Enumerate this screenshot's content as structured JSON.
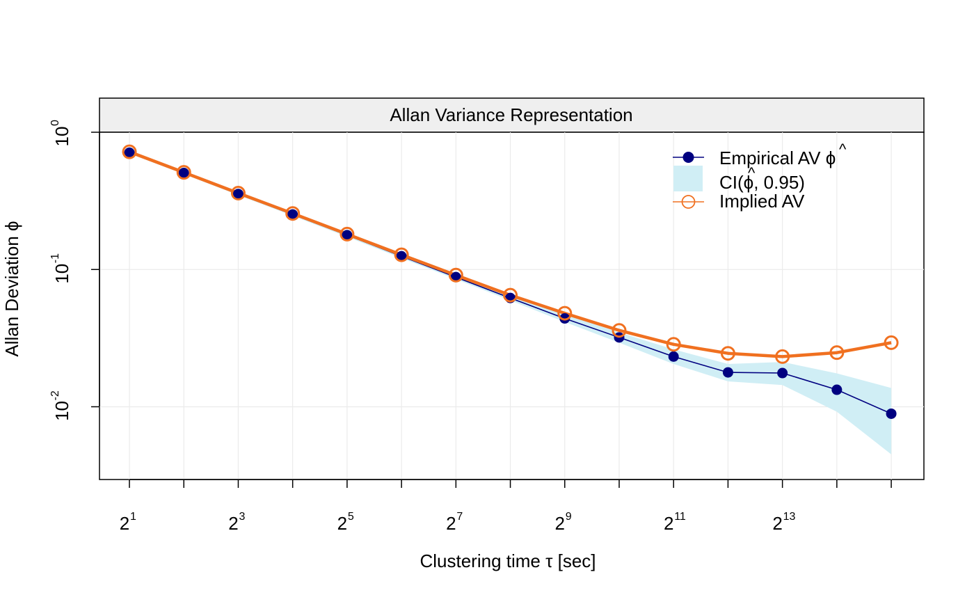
{
  "chart_data": {
    "type": "line",
    "title": "Allan Variance Representation",
    "xlabel": "Clustering time τ [sec]",
    "ylabel": "Allan Deviation ϕ",
    "x_scale": "log2",
    "y_scale": "log10",
    "xlim_log2": [
      0.45,
      15.6
    ],
    "ylim_log10": [
      -2.53,
      0.0
    ],
    "x_ticks": [
      {
        "base": "2",
        "exp": "1",
        "value_log2": 1
      },
      {
        "base": "2",
        "exp": "3",
        "value_log2": 3
      },
      {
        "base": "2",
        "exp": "5",
        "value_log2": 5
      },
      {
        "base": "2",
        "exp": "7",
        "value_log2": 7
      },
      {
        "base": "2",
        "exp": "9",
        "value_log2": 9
      },
      {
        "base": "2",
        "exp": "11",
        "value_log2": 11
      },
      {
        "base": "2",
        "exp": "13",
        "value_log2": 13
      }
    ],
    "y_ticks": [
      {
        "base": "10",
        "exp": "0",
        "value_log10": 0
      },
      {
        "base": "10",
        "exp": "-1",
        "value_log10": -1
      },
      {
        "base": "10",
        "exp": "-2",
        "value_log10": -2
      }
    ],
    "grid": true,
    "legend_position": "top-right",
    "x_log2": [
      1,
      2,
      3,
      4,
      5,
      6,
      7,
      8,
      9,
      10,
      11,
      12,
      13,
      14,
      15
    ],
    "series": [
      {
        "name": "Empirical AV ϕ̂",
        "legend_main": "Empirical AV ",
        "legend_symbol": "ϕ",
        "legend_hat": "^",
        "color": "#000080",
        "values": [
          0.71,
          0.505,
          0.355,
          0.252,
          0.178,
          0.125,
          0.088,
          0.062,
          0.044,
          0.032,
          0.0232,
          0.0178,
          0.0176,
          0.0133,
          0.0089
        ]
      },
      {
        "name": "Implied AV",
        "legend_main": "Implied AV",
        "color": "#F07020",
        "values": [
          0.72,
          0.51,
          0.36,
          0.256,
          0.181,
          0.128,
          0.091,
          0.065,
          0.048,
          0.036,
          0.0285,
          0.0245,
          0.0232,
          0.0248,
          0.0293
        ]
      }
    ],
    "ci": {
      "name": "CI(ϕ̂, 0.95)",
      "legend_pre": "CI(",
      "legend_symbol": "ϕ",
      "legend_post": ", 0.95)",
      "legend_hat": "^",
      "color": "#D0EEF5",
      "lower": [
        0.7,
        0.495,
        0.348,
        0.246,
        0.173,
        0.121,
        0.085,
        0.0595,
        0.0415,
        0.0293,
        0.0205,
        0.0153,
        0.0144,
        0.0092,
        0.0045
      ],
      "upper": [
        0.72,
        0.515,
        0.362,
        0.258,
        0.183,
        0.129,
        0.091,
        0.065,
        0.047,
        0.0348,
        0.0262,
        0.0205,
        0.0212,
        0.0175,
        0.0137
      ]
    }
  }
}
